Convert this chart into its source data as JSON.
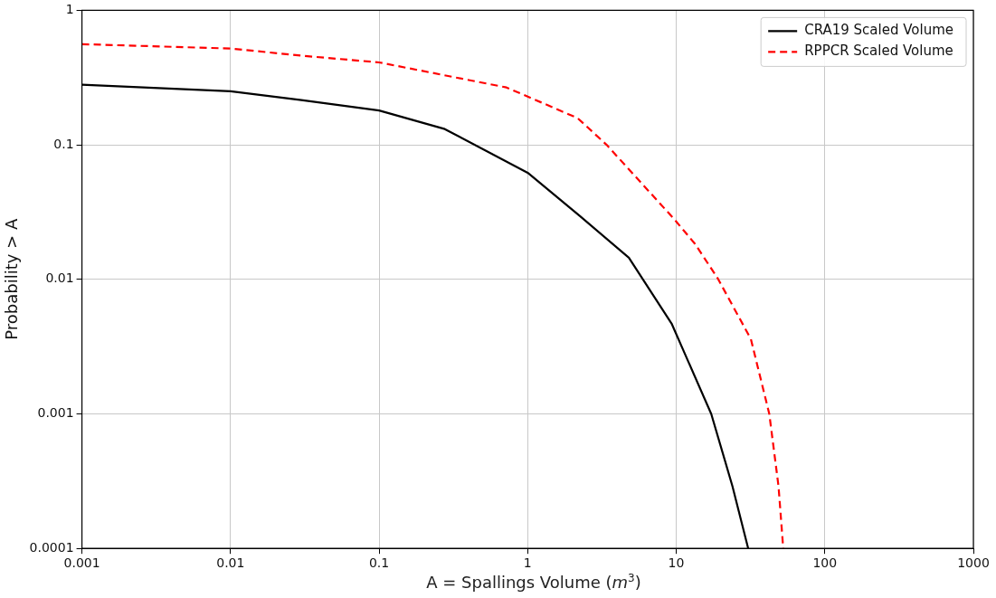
{
  "chart_data": {
    "type": "line",
    "xlabel": "A = Spallings Volume (m$^{3}$)",
    "ylabel": "Probability > A",
    "log": "xy",
    "grid": true,
    "legend": "top right",
    "marker": "none",
    "xlim": [
      0.001,
      1000
    ],
    "xticks": [
      0.001,
      0.01,
      0.1,
      1,
      10,
      100,
      1000
    ],
    "ylim": [
      0.0001,
      1
    ],
    "yticks": [
      0.0001,
      0.001,
      0.01,
      0.1,
      1
    ],
    "series": [
      {
        "name": "CRA19 Scaled Volume",
        "color": "#000000",
        "line_style": "solid",
        "x": [
          0.001,
          0.01,
          0.03,
          0.1,
          0.277,
          1,
          2.25,
          4.8,
          9.3,
          17.2,
          23.9,
          30.5
        ],
        "values": [
          0.28,
          0.25,
          0.215,
          0.18,
          0.131,
          0.062,
          0.0295,
          0.0145,
          0.0047,
          0.001,
          0.00029,
          0.0001
        ]
      },
      {
        "name": "RPPCR Scaled Volume",
        "color": "#ff0000",
        "line_style": "dashed",
        "x": [
          0.001,
          0.01,
          0.03,
          0.1,
          0.72,
          2.17,
          3.4,
          9.7,
          13.4,
          19,
          31.8,
          42.3,
          48.8,
          52.5
        ],
        "values": [
          0.56,
          0.52,
          0.46,
          0.41,
          0.267,
          0.158,
          0.1,
          0.028,
          0.0183,
          0.0102,
          0.0036,
          0.001,
          0.00029,
          0.0001
        ]
      }
    ]
  }
}
